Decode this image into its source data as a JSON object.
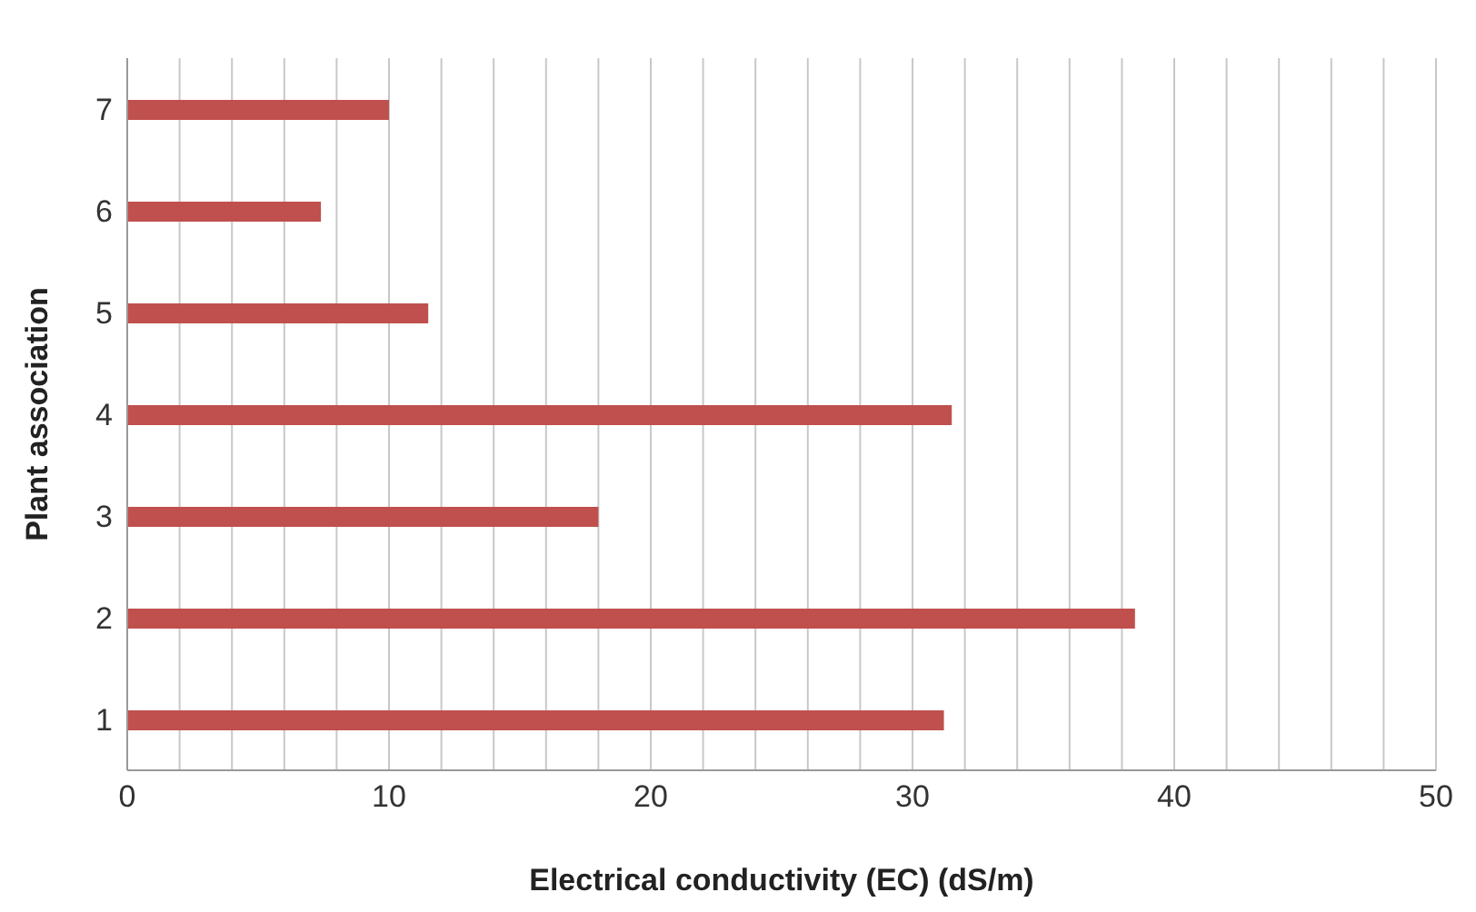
{
  "chart_data": {
    "type": "bar",
    "orientation": "horizontal",
    "xlabel": "Electrical conductivity (EC) (dS/m)",
    "ylabel": "Plant association",
    "categories": [
      "7",
      "6",
      "5",
      "4",
      "3",
      "2",
      "1"
    ],
    "values": [
      10,
      7.4,
      11.5,
      31.5,
      18,
      38.5,
      31.2
    ],
    "color": "#c0504d",
    "xlim": [
      0,
      50
    ],
    "xticks": [
      0,
      {
        "value": 2,
        "label": null
      },
      {
        "value": 4,
        "label": null
      },
      {
        "value": 6,
        "label": null
      },
      {
        "value": 8,
        "label": null
      },
      10,
      {
        "value": 12,
        "label": null
      },
      {
        "value": 14,
        "label": null
      },
      {
        "value": 16,
        "label": null
      },
      {
        "value": 18,
        "label": null
      },
      20,
      {
        "value": 22,
        "label": null
      },
      {
        "value": 24,
        "label": null
      },
      {
        "value": 26,
        "label": null
      },
      {
        "value": 28,
        "label": null
      },
      30,
      {
        "value": 32,
        "label": null
      },
      {
        "value": 34,
        "label": null
      },
      {
        "value": 36,
        "label": null
      },
      {
        "value": 38,
        "label": null
      },
      40,
      {
        "value": 42,
        "label": null
      },
      {
        "value": 44,
        "label": null
      },
      {
        "value": 46,
        "label": null
      },
      {
        "value": 48,
        "label": null
      },
      50
    ],
    "grid": "x",
    "legend": false
  }
}
